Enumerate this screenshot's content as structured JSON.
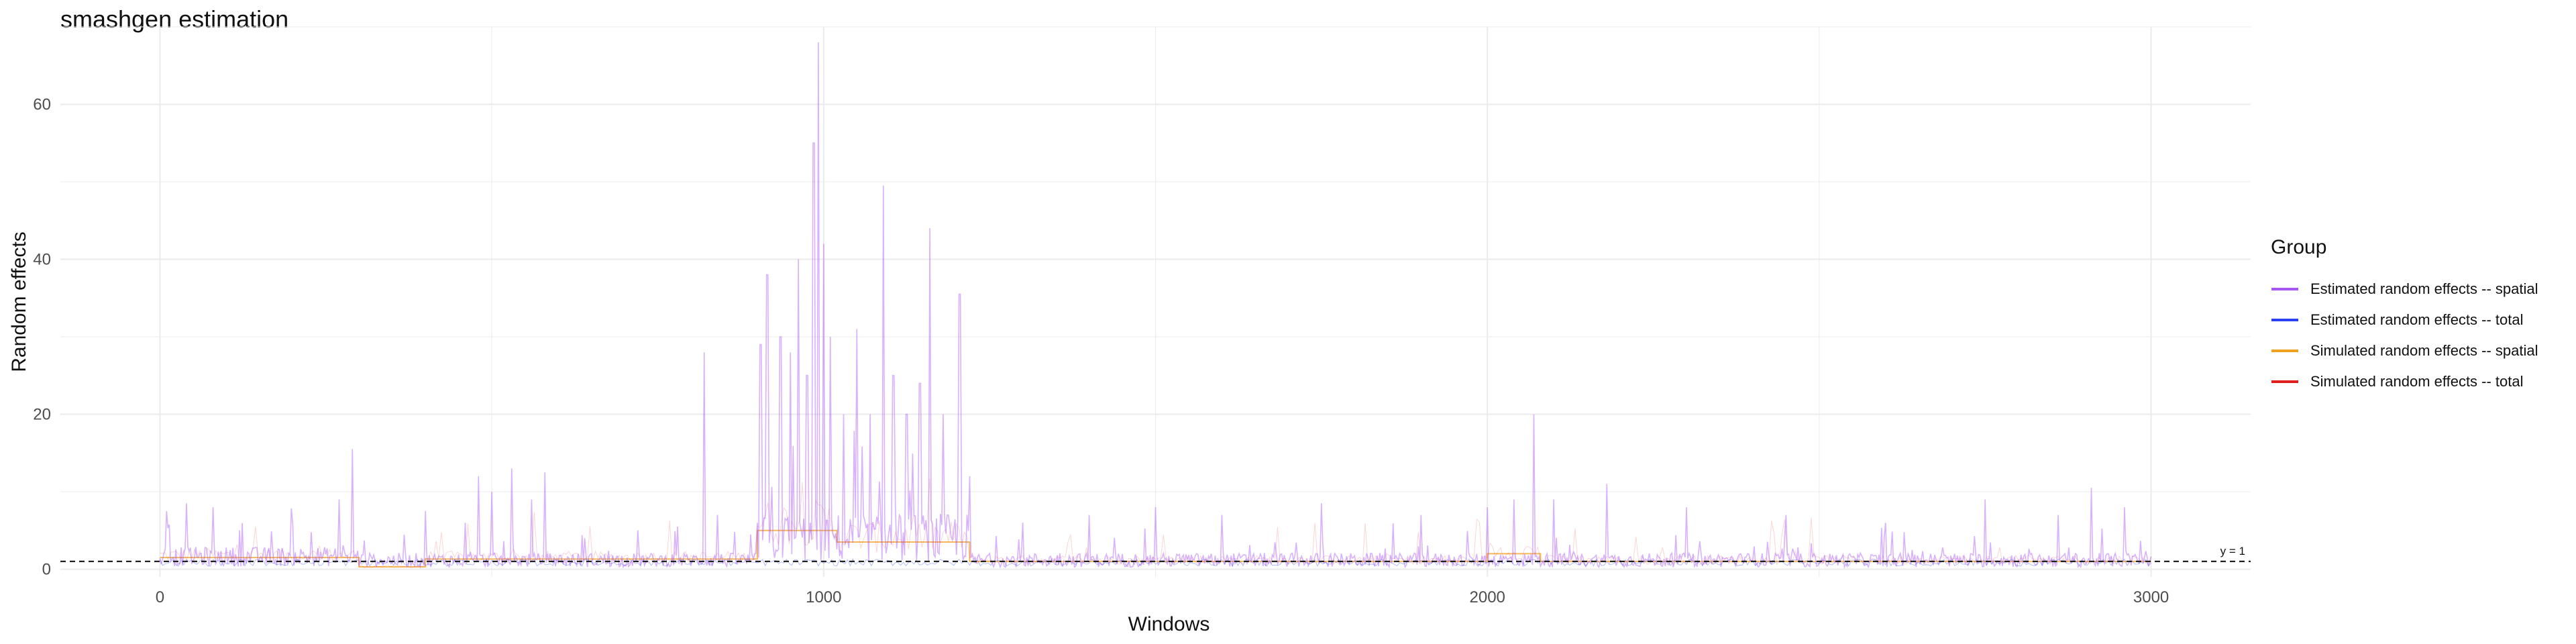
{
  "chart_data": {
    "type": "line",
    "title": "smashgen estimation",
    "xlabel": "Windows",
    "ylabel": "Random effects",
    "xlim": [
      -150,
      3150
    ],
    "ylim": [
      -1,
      70
    ],
    "x_ticks": [
      0,
      1000,
      2000,
      3000
    ],
    "y_ticks": [
      0,
      20,
      40,
      60
    ],
    "grid": true,
    "legend_position": "right",
    "legend_title": "Group",
    "reference_line": {
      "y": 1,
      "label": "y = 1",
      "style": "dashed"
    },
    "series": [
      {
        "name": "Estimated random effects -- spatial",
        "color": "#a855f7",
        "baseline": 1.2,
        "segments": [
          {
            "from": 0,
            "to": 300,
            "level": 1.8
          },
          {
            "from": 300,
            "to": 900,
            "level": 1.3
          },
          {
            "from": 900,
            "to": 1220,
            "level": 4.5
          },
          {
            "from": 1220,
            "to": 3000,
            "level": 1.3
          }
        ],
        "peaks": [
          [
            10,
            7.5
          ],
          [
            40,
            8.5
          ],
          [
            80,
            8
          ],
          [
            120,
            5
          ],
          [
            200,
            6
          ],
          [
            270,
            9
          ],
          [
            290,
            15.5
          ],
          [
            400,
            7.5
          ],
          [
            460,
            6
          ],
          [
            480,
            12
          ],
          [
            500,
            10
          ],
          [
            530,
            13
          ],
          [
            560,
            9
          ],
          [
            580,
            12.5
          ],
          [
            640,
            4
          ],
          [
            720,
            5
          ],
          [
            780,
            5.5
          ],
          [
            820,
            28
          ],
          [
            840,
            7
          ],
          [
            905,
            29
          ],
          [
            915,
            38
          ],
          [
            935,
            30
          ],
          [
            950,
            28
          ],
          [
            962,
            40
          ],
          [
            975,
            25
          ],
          [
            985,
            55
          ],
          [
            992,
            68
          ],
          [
            1000,
            42
          ],
          [
            1010,
            30
          ],
          [
            1030,
            20
          ],
          [
            1050,
            31
          ],
          [
            1070,
            20
          ],
          [
            1090,
            49.5
          ],
          [
            1105,
            25
          ],
          [
            1125,
            20
          ],
          [
            1145,
            24
          ],
          [
            1160,
            44
          ],
          [
            1180,
            20
          ],
          [
            1205,
            35.5
          ],
          [
            1220,
            12
          ],
          [
            1300,
            6
          ],
          [
            1400,
            7
          ],
          [
            1500,
            8
          ],
          [
            1600,
            7
          ],
          [
            1750,
            8.5
          ],
          [
            1900,
            7
          ],
          [
            2000,
            8
          ],
          [
            2040,
            9
          ],
          [
            2070,
            20
          ],
          [
            2100,
            9
          ],
          [
            2180,
            11
          ],
          [
            2300,
            8
          ],
          [
            2450,
            7
          ],
          [
            2600,
            6
          ],
          [
            2750,
            9
          ],
          [
            2860,
            7
          ],
          [
            2910,
            10.5
          ],
          [
            2960,
            8
          ]
        ]
      },
      {
        "name": "Estimated random effects -- total",
        "color": "#2b3ff5",
        "values": []
      },
      {
        "name": "Simulated random effects -- spatial",
        "color": "#f0a020",
        "segments": [
          {
            "from": 0,
            "to": 300,
            "level": 1.5
          },
          {
            "from": 300,
            "to": 400,
            "level": 0.3
          },
          {
            "from": 400,
            "to": 900,
            "level": 1.3
          },
          {
            "from": 900,
            "to": 1020,
            "level": 5
          },
          {
            "from": 1020,
            "to": 1220,
            "level": 3.5
          },
          {
            "from": 1220,
            "to": 2000,
            "level": 1
          },
          {
            "from": 2000,
            "to": 2080,
            "level": 2
          },
          {
            "from": 2080,
            "to": 3000,
            "level": 1
          }
        ]
      },
      {
        "name": "Simulated random effects -- total",
        "color": "#e11d1d",
        "values": []
      }
    ]
  }
}
